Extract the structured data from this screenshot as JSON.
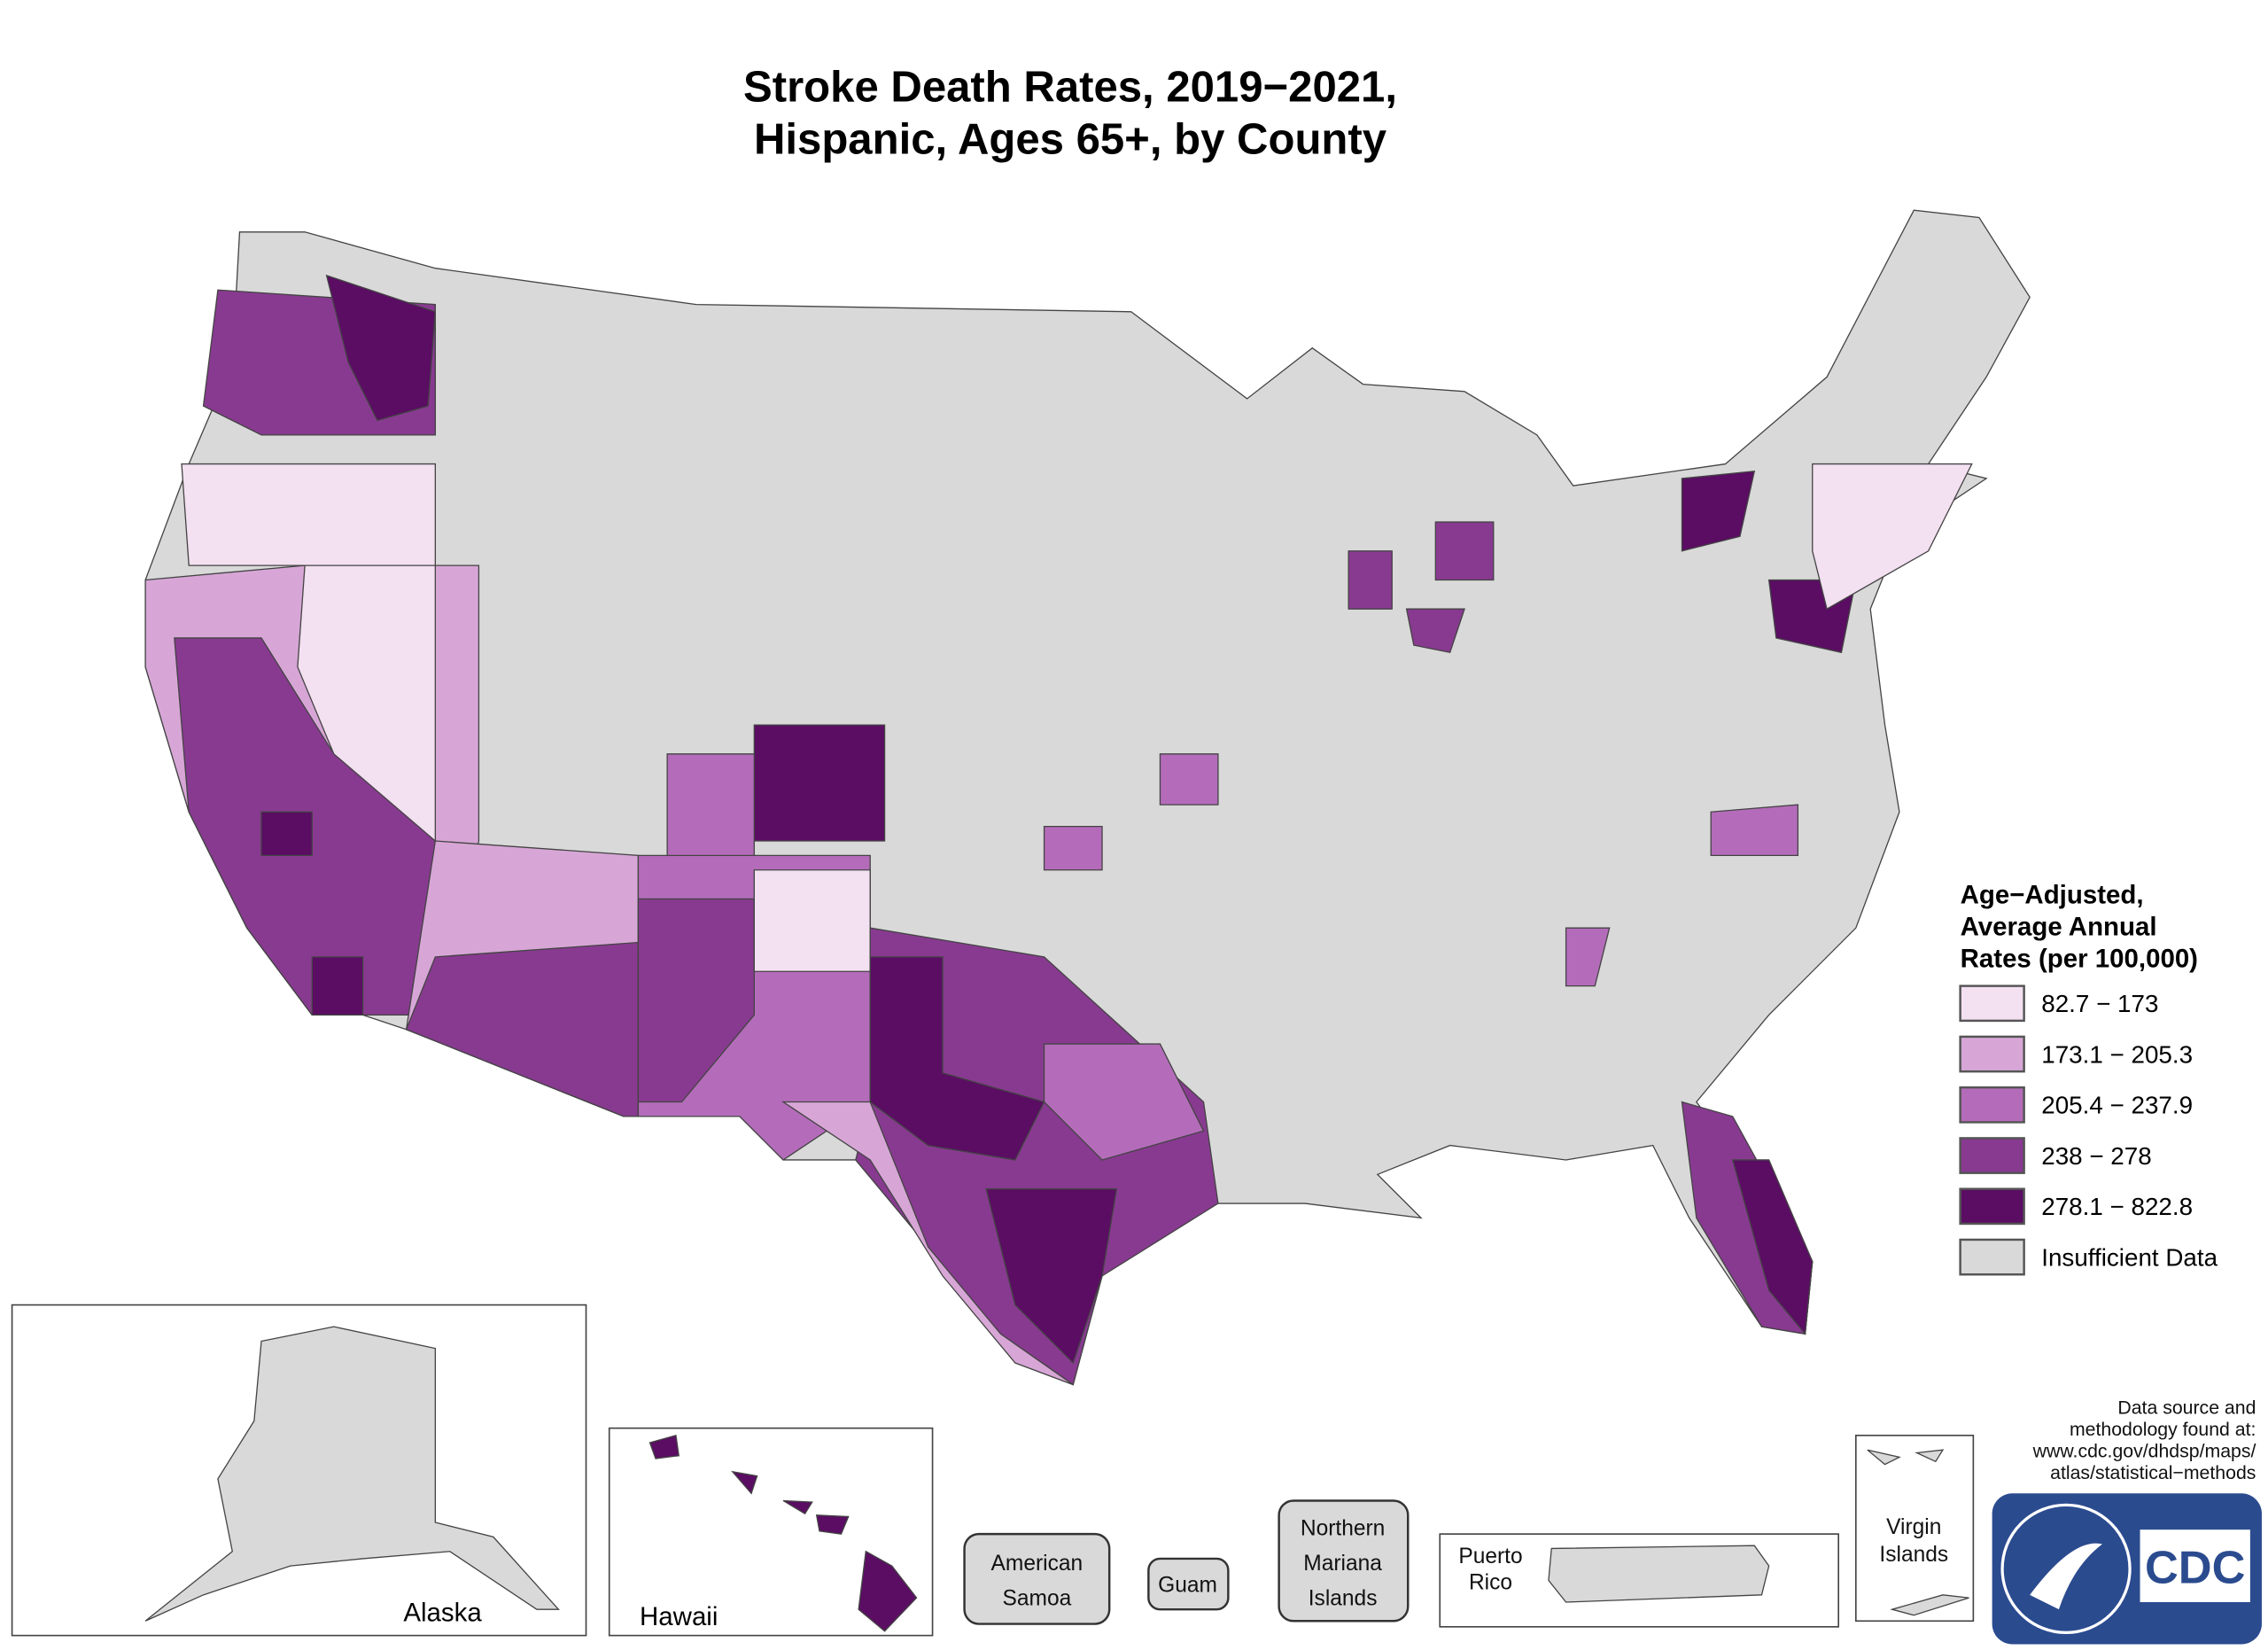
{
  "title": [
    "Stroke Death Rates, 2019−2021,",
    "Hispanic, Ages 65+, by County"
  ],
  "legend": {
    "title": [
      "Age−Adjusted,",
      "Average Annual",
      "Rates (per 100,000)"
    ],
    "items": [
      {
        "label": "82.7 − 173",
        "color": "#f3e0f1"
      },
      {
        "label": "173.1 − 205.3",
        "color": "#d7a6d6"
      },
      {
        "label": "205.4 − 237.9",
        "color": "#b46cba"
      },
      {
        "label": "238 − 278",
        "color": "#883a90"
      },
      {
        "label": "278.1 − 822.8",
        "color": "#5a0d63"
      },
      {
        "label": "Insufficient Data",
        "color": "#d9d9d9"
      }
    ]
  },
  "insets": {
    "alaska": "Alaska",
    "hawaii": "Hawaii",
    "american_samoa": [
      "American",
      "Samoa"
    ],
    "guam": "Guam",
    "northern_mariana": [
      "Northern",
      "Mariana",
      "Islands"
    ],
    "puerto_rico": [
      "Puerto",
      "Rico"
    ],
    "virgin_islands": [
      "Virgin",
      "Islands"
    ]
  },
  "source_note": [
    "Data source and",
    "methodology found at:",
    "www.cdc.gov/dhdsp/maps/",
    "atlas/statistical−methods"
  ],
  "logo": "CDC"
}
